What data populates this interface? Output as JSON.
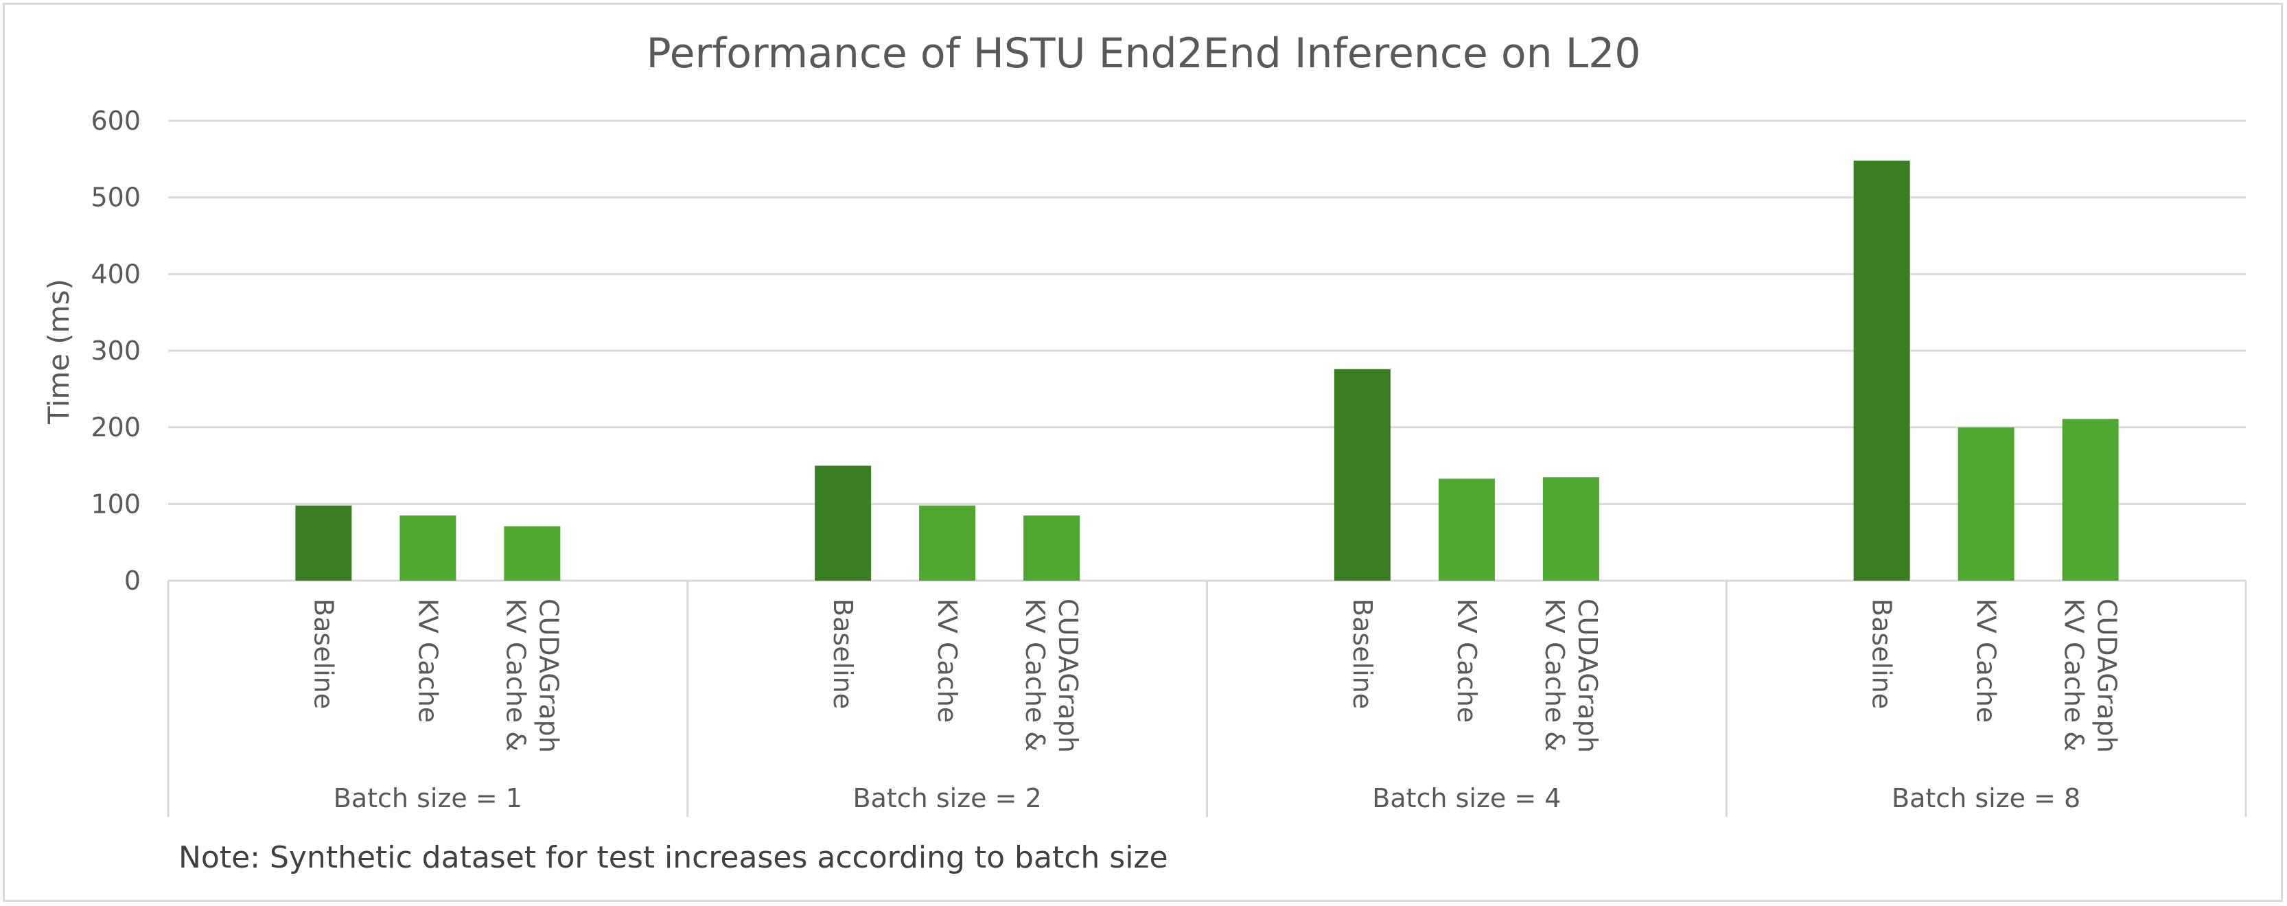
{
  "chart_data": {
    "type": "bar",
    "title": "Performance of HSTU End2End Inference on L20",
    "ylabel": "Time (ms)",
    "xlabel": "",
    "ylim": [
      0,
      600
    ],
    "yticks": [
      0,
      100,
      200,
      300,
      400,
      500,
      600
    ],
    "grid": true,
    "legend": "none",
    "groups": [
      {
        "label": "Batch size = 1",
        "bars": [
          {
            "label": "Baseline",
            "value": 98
          },
          {
            "label": "KV Cache",
            "value": 85
          },
          {
            "label": "KV Cache & CUDAGraph",
            "label_lines": [
              "KV Cache &",
              "CUDAGraph"
            ],
            "value": 71
          }
        ]
      },
      {
        "label": "Batch size = 2",
        "bars": [
          {
            "label": "Baseline",
            "value": 150
          },
          {
            "label": "KV Cache",
            "value": 98
          },
          {
            "label": "KV Cache & CUDAGraph",
            "label_lines": [
              "KV Cache &",
              "CUDAGraph"
            ],
            "value": 85
          }
        ]
      },
      {
        "label": "Batch size = 4",
        "bars": [
          {
            "label": "Baseline",
            "value": 276
          },
          {
            "label": "KV Cache",
            "value": 133
          },
          {
            "label": "KV Cache & CUDAGraph",
            "label_lines": [
              "KV Cache &",
              "CUDAGraph"
            ],
            "value": 135
          }
        ]
      },
      {
        "label": "Batch size = 8",
        "bars": [
          {
            "label": "Baseline",
            "value": 548
          },
          {
            "label": "KV Cache",
            "value": 200
          },
          {
            "label": "KV Cache & CUDAGraph",
            "label_lines": [
              "KV Cache &",
              "CUDAGraph"
            ],
            "value": 211
          }
        ]
      }
    ],
    "colors": {
      "baseline": "#3a7e24",
      "optimized": "#4ea72e",
      "grid": "#d9d9d9",
      "text": "#595959"
    }
  },
  "note": "Note: Synthetic dataset for test increases according to batch size"
}
